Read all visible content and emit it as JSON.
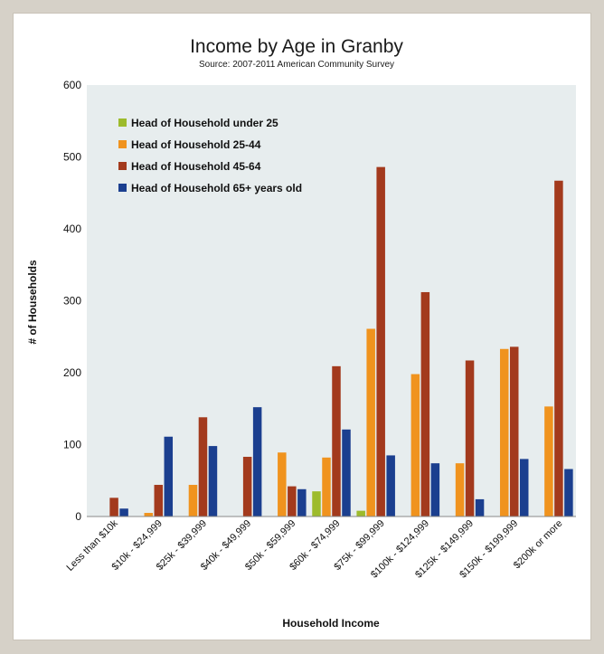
{
  "chart_data": {
    "type": "bar",
    "title": "Income by Age in Granby",
    "subtitle": "Source: 2007-2011 American Community Survey",
    "xlabel": "Household Income",
    "ylabel": "# of Households",
    "ylim": [
      0,
      600
    ],
    "yticks": [
      "0",
      "100",
      "200",
      "300",
      "400",
      "500",
      "600"
    ],
    "grid": false,
    "legend_position": "top-left",
    "categories": [
      "Less than $10k",
      "$10k - $24,999",
      "$25k - $39,999",
      "$40k - $49,999",
      "$50k - $59,999",
      "$60k - $74,999",
      "$75k - $99,999",
      "$100k - $124,999",
      "$125k - $149,999",
      "$150k - $199,999",
      "$200k or more"
    ],
    "series": [
      {
        "name": "Head of Household under 25",
        "color": "#9dbb2c",
        "values": [
          0,
          0,
          0,
          0,
          0,
          35,
          8,
          0,
          0,
          0,
          0
        ]
      },
      {
        "name": "Head of Household 25-44",
        "color": "#f0931e",
        "values": [
          0,
          5,
          44,
          0,
          89,
          82,
          261,
          198,
          74,
          233,
          153
        ]
      },
      {
        "name": "Head of Household 45-64",
        "color": "#a33a1d",
        "values": [
          26,
          44,
          138,
          83,
          42,
          209,
          486,
          312,
          217,
          236,
          467
        ]
      },
      {
        "name": "Head of Household 65+ years old",
        "color": "#1b3f8f",
        "values": [
          11,
          111,
          98,
          152,
          38,
          121,
          85,
          74,
          24,
          80,
          66
        ]
      }
    ]
  }
}
